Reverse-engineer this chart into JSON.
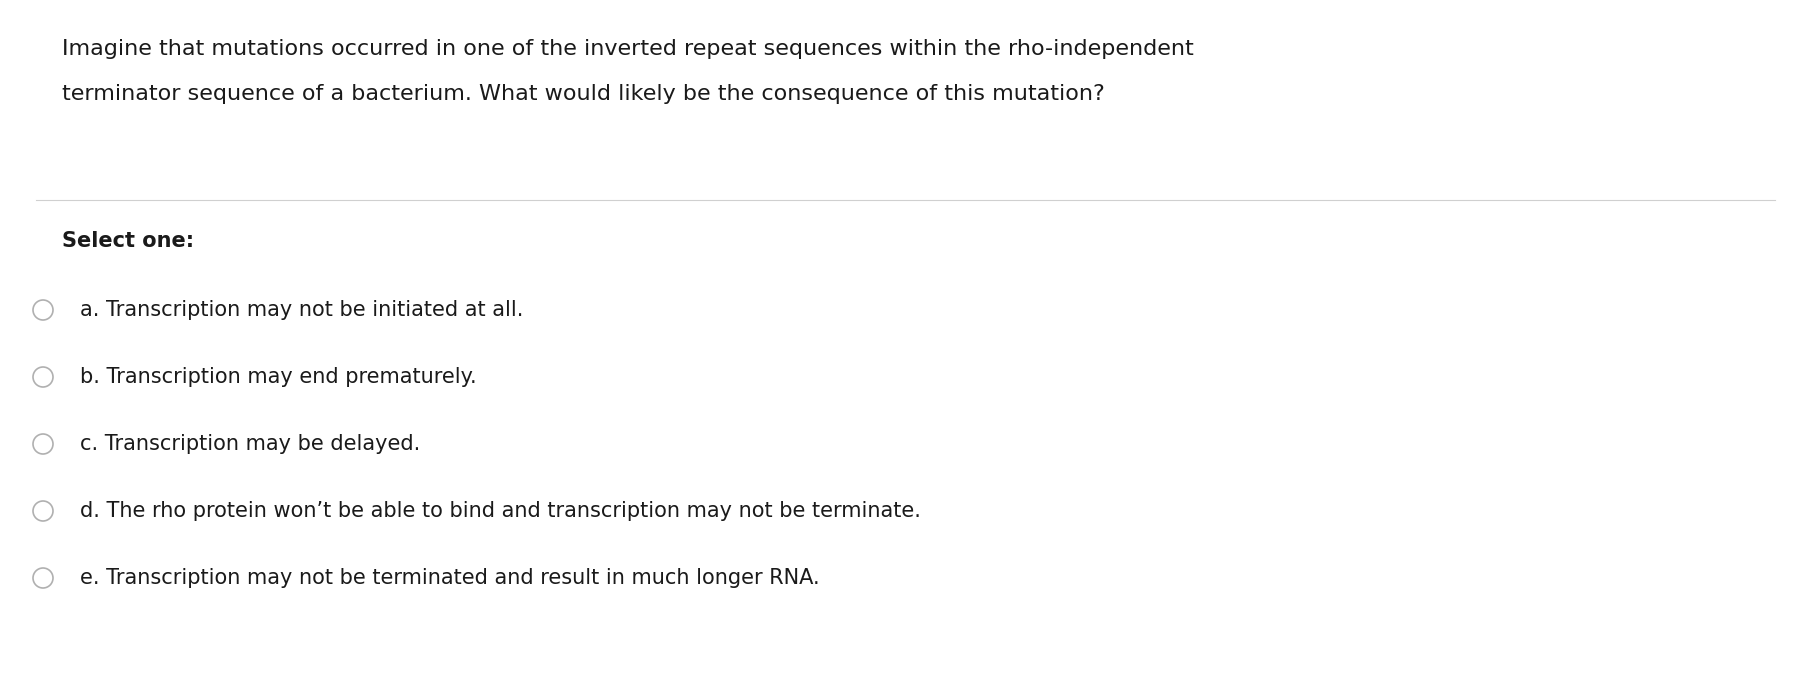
{
  "question_line1": "Imagine that mutations occurred in one of the inverted repeat sequences within the rho-independent",
  "question_line2": "terminator sequence of a bacterium. What would likely be the consequence of this mutation?",
  "select_label": "Select one:",
  "options": [
    "a. Transcription may not be initiated at all.",
    "b. Transcription may end prematurely.",
    "c. Transcription may be delayed.",
    "d. The rho protein won’t be able to bind and transcription may not be terminate.",
    "e. Transcription may not be terminated and result in much longer RNA."
  ],
  "bg_color": "#ffffff",
  "text_color": "#1a1a1a",
  "line_color": "#d0d0d0",
  "circle_edge_color": "#b0b0b0",
  "question_fontsize": 16,
  "select_fontsize": 15,
  "option_fontsize": 15,
  "figwidth": 18.02,
  "figheight": 6.96,
  "dpi": 100
}
